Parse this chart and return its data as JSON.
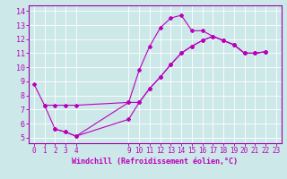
{
  "xlabel": "Windchill (Refroidissement éolien,°C)",
  "background_color": "#cce8e8",
  "line_color": "#bb00bb",
  "x_ticks": [
    0,
    1,
    2,
    3,
    4,
    9,
    10,
    11,
    12,
    13,
    14,
    15,
    16,
    17,
    18,
    19,
    20,
    21,
    22,
    23
  ],
  "y_ticks": [
    5,
    6,
    7,
    8,
    9,
    10,
    11,
    12,
    13,
    14
  ],
  "ylim": [
    4.6,
    14.4
  ],
  "xlim": [
    -0.5,
    23.5
  ],
  "series1": [
    [
      0,
      8.8
    ],
    [
      1,
      7.3
    ],
    [
      2,
      5.6
    ],
    [
      3,
      5.4
    ],
    [
      4,
      5.1
    ],
    [
      9,
      7.5
    ],
    [
      10,
      9.8
    ],
    [
      11,
      11.5
    ],
    [
      12,
      12.8
    ],
    [
      13,
      13.5
    ],
    [
      14,
      13.7
    ],
    [
      15,
      12.6
    ],
    [
      16,
      12.6
    ],
    [
      17,
      12.2
    ],
    [
      18,
      11.9
    ],
    [
      19,
      11.6
    ],
    [
      20,
      11.0
    ],
    [
      21,
      11.0
    ],
    [
      22,
      11.1
    ]
  ],
  "series2": [
    [
      1,
      7.3
    ],
    [
      2,
      7.3
    ],
    [
      3,
      7.3
    ],
    [
      4,
      7.3
    ],
    [
      9,
      7.5
    ],
    [
      10,
      7.5
    ],
    [
      11,
      8.5
    ],
    [
      12,
      9.3
    ],
    [
      13,
      10.2
    ],
    [
      14,
      11.0
    ],
    [
      15,
      11.5
    ],
    [
      16,
      11.9
    ],
    [
      17,
      12.2
    ],
    [
      18,
      11.9
    ],
    [
      19,
      11.6
    ],
    [
      20,
      11.0
    ],
    [
      21,
      11.0
    ],
    [
      22,
      11.1
    ]
  ],
  "series3": [
    [
      2,
      5.6
    ],
    [
      3,
      5.4
    ],
    [
      4,
      5.1
    ],
    [
      9,
      6.3
    ],
    [
      10,
      7.5
    ],
    [
      11,
      8.5
    ],
    [
      12,
      9.3
    ],
    [
      13,
      10.2
    ],
    [
      14,
      11.0
    ],
    [
      15,
      11.5
    ],
    [
      16,
      11.9
    ],
    [
      17,
      12.2
    ],
    [
      18,
      11.9
    ],
    [
      19,
      11.6
    ],
    [
      20,
      11.0
    ],
    [
      21,
      11.0
    ],
    [
      22,
      11.1
    ]
  ],
  "grid_color": "#ffffff",
  "spine_color": "#9900aa",
  "xlabel_fontsize": 6.0,
  "tick_fontsize": 5.5
}
